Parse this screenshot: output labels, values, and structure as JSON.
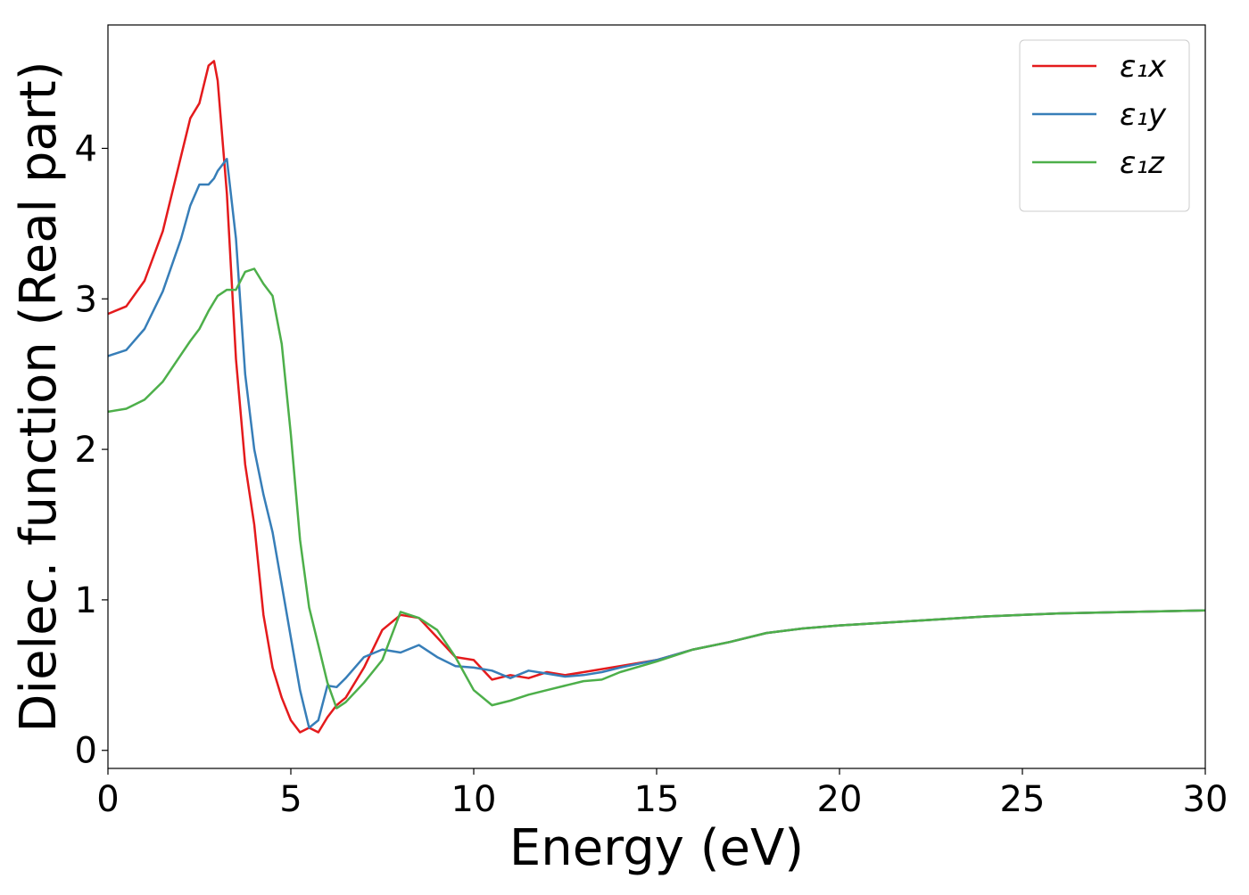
{
  "chart_data": {
    "type": "line",
    "xlabel": "Energy (eV)",
    "ylabel": "Dielec. function (Real part)",
    "x": [
      0,
      0.5,
      1,
      1.5,
      2,
      2.25,
      2.5,
      2.75,
      2.9,
      3,
      3.25,
      3.5,
      3.75,
      4,
      4.25,
      4.5,
      4.75,
      5,
      5.25,
      5.5,
      5.75,
      6,
      6.25,
      6.5,
      7,
      7.5,
      8,
      8.5,
      9,
      9.5,
      10,
      10.5,
      11,
      11.5,
      12,
      12.5,
      13,
      13.5,
      14,
      15,
      16,
      17,
      18,
      19,
      20,
      22,
      24,
      26,
      28,
      30
    ],
    "series": [
      {
        "name": "ε₁x",
        "color": "#e41a1c",
        "values": [
          2.9,
          2.95,
          3.12,
          3.45,
          3.95,
          4.2,
          4.3,
          4.55,
          4.58,
          4.45,
          3.7,
          2.6,
          1.9,
          1.5,
          0.9,
          0.55,
          0.35,
          0.2,
          0.12,
          0.15,
          0.12,
          0.22,
          0.3,
          0.35,
          0.55,
          0.8,
          0.9,
          0.88,
          0.75,
          0.62,
          0.6,
          0.47,
          0.5,
          0.48,
          0.52,
          0.5,
          0.52,
          0.54,
          0.56,
          0.6,
          0.67,
          0.72,
          0.78,
          0.81,
          0.83,
          0.86,
          0.89,
          0.91,
          0.92,
          0.93
        ]
      },
      {
        "name": "ε₁y",
        "color": "#377eb8",
        "values": [
          2.62,
          2.66,
          2.8,
          3.05,
          3.4,
          3.62,
          3.76,
          3.76,
          3.8,
          3.85,
          3.93,
          3.4,
          2.5,
          2.0,
          1.7,
          1.45,
          1.1,
          0.75,
          0.4,
          0.15,
          0.2,
          0.43,
          0.42,
          0.48,
          0.62,
          0.67,
          0.65,
          0.7,
          0.62,
          0.56,
          0.55,
          0.53,
          0.48,
          0.53,
          0.51,
          0.49,
          0.5,
          0.52,
          0.55,
          0.6,
          0.67,
          0.72,
          0.78,
          0.81,
          0.83,
          0.86,
          0.89,
          0.91,
          0.92,
          0.93
        ]
      },
      {
        "name": "ε₁z",
        "color": "#4daf4a",
        "values": [
          2.25,
          2.27,
          2.33,
          2.45,
          2.63,
          2.72,
          2.8,
          2.92,
          2.98,
          3.02,
          3.06,
          3.06,
          3.18,
          3.2,
          3.1,
          3.02,
          2.7,
          2.1,
          1.4,
          0.95,
          0.7,
          0.45,
          0.28,
          0.32,
          0.45,
          0.6,
          0.92,
          0.88,
          0.8,
          0.62,
          0.4,
          0.3,
          0.33,
          0.37,
          0.4,
          0.43,
          0.46,
          0.47,
          0.52,
          0.59,
          0.67,
          0.72,
          0.78,
          0.81,
          0.83,
          0.86,
          0.89,
          0.91,
          0.92,
          0.93
        ]
      }
    ],
    "xlim": [
      0,
      30
    ],
    "xticks": [
      0,
      5,
      10,
      15,
      20,
      25,
      30
    ],
    "ylim": [
      -0.12,
      4.82
    ],
    "yticks": [
      0,
      1,
      2,
      3,
      4
    ],
    "grid": false,
    "legend": "upper right"
  }
}
